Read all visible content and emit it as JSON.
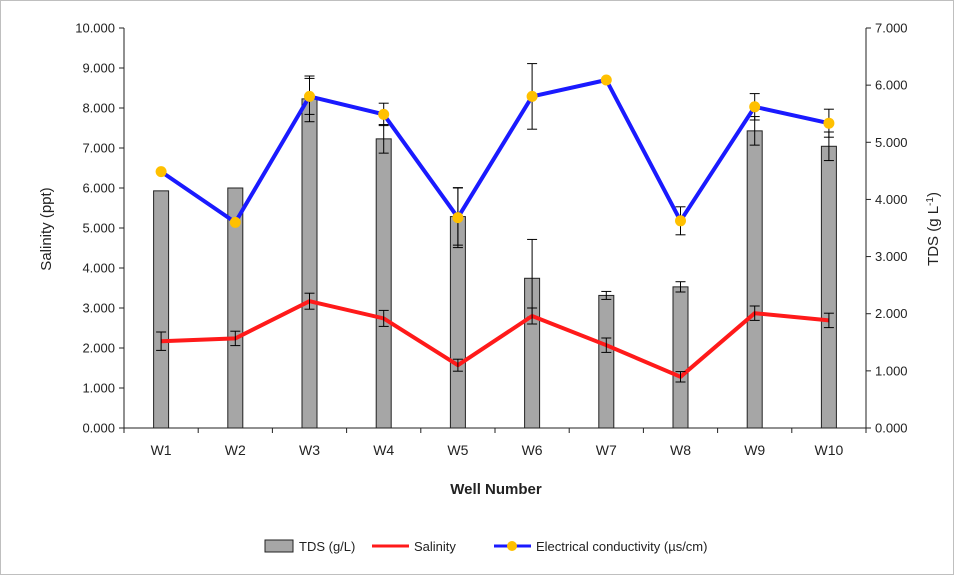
{
  "chart_data": {
    "type": "bar",
    "categories": [
      "W1",
      "W2",
      "W3",
      "W4",
      "W5",
      "W6",
      "W7",
      "W8",
      "W9",
      "W10"
    ],
    "xlabel": "Well Number",
    "ylabel": "Salinity (ppt)",
    "y2label": "TDS (g L",
    "y2label_sup": "-1",
    "y2label_end": ")",
    "ylim": [
      0,
      10
    ],
    "y2lim": [
      0,
      7
    ],
    "y_ticks": [
      "0.000",
      "1.000",
      "2.000",
      "3.000",
      "4.000",
      "5.000",
      "6.000",
      "7.000",
      "8.000",
      "9.000",
      "10.000"
    ],
    "y2_ticks": [
      "0.000",
      "1.000",
      "2.000",
      "3.000",
      "4.000",
      "5.000",
      "6.000",
      "7.000"
    ],
    "grid": false,
    "legend_position": "bottom",
    "series": [
      {
        "name": "TDS (g/L)",
        "kind": "bar",
        "axis": "right",
        "color": "#a6a6a6",
        "values": [
          4.15,
          4.2,
          5.76,
          5.06,
          3.7,
          2.62,
          2.32,
          2.47,
          5.2,
          4.93
        ],
        "errors": [
          0,
          0,
          0.4,
          0.25,
          0.5,
          0.68,
          0.07,
          0.09,
          0.25,
          0.25
        ]
      },
      {
        "name": "Salinity",
        "kind": "line",
        "axis": "left",
        "color": "#ff1a1a",
        "values": [
          2.17,
          2.24,
          3.17,
          2.74,
          1.57,
          2.8,
          2.07,
          1.28,
          2.87,
          2.69
        ],
        "errors": [
          0.23,
          0.18,
          0.2,
          0.2,
          0.15,
          0.2,
          0.18,
          0.13,
          0.18,
          0.18
        ]
      },
      {
        "name": "Electrical conductivity (µs/cm)",
        "kind": "line",
        "axis": "left",
        "color": "#1a1aff",
        "marker_color": "#ffc000",
        "values": [
          6.41,
          5.14,
          8.29,
          7.84,
          5.26,
          8.29,
          8.7,
          5.18,
          8.03,
          7.62
        ],
        "errors": [
          0,
          0,
          0.45,
          0.28,
          0.75,
          0.82,
          0,
          0.35,
          0.33,
          0.35
        ]
      }
    ]
  }
}
